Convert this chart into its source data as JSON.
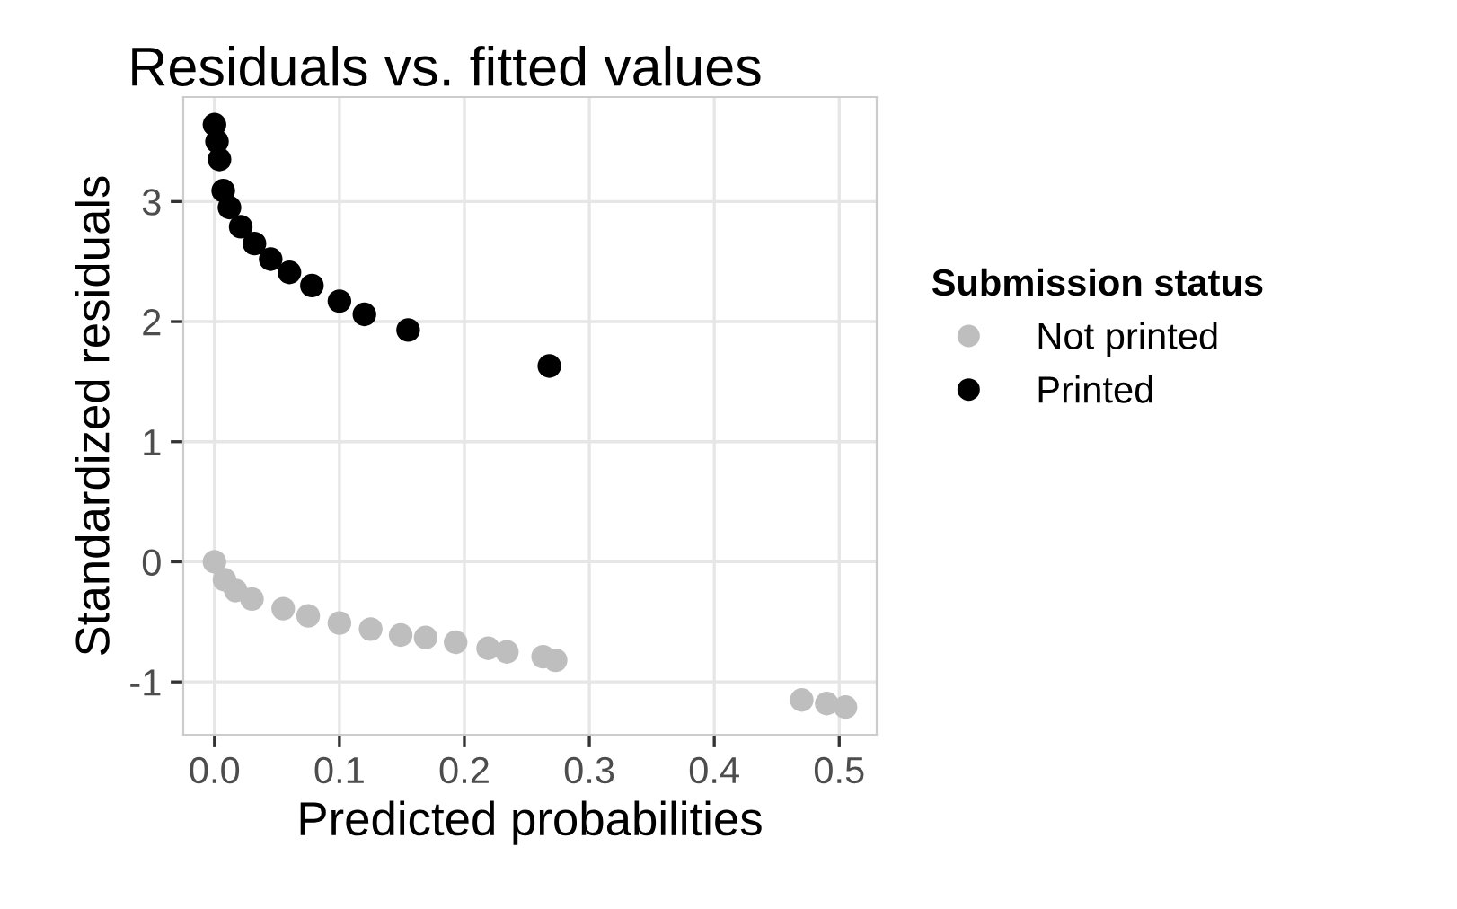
{
  "chart_data": {
    "type": "scatter",
    "title": "Residuals vs. fitted values",
    "xlabel": "Predicted probabilities",
    "ylabel": "Standardized residuals",
    "legend_title": "Submission status",
    "series": [
      {
        "name": "Not printed",
        "color": "#bebebe",
        "x": [
          0.0,
          0.008,
          0.017,
          0.03,
          0.055,
          0.075,
          0.1,
          0.125,
          0.149,
          0.169,
          0.193,
          0.219,
          0.234,
          0.263,
          0.273,
          0.47,
          0.49,
          0.505
        ],
        "values": [
          0.0,
          -0.15,
          -0.24,
          -0.31,
          -0.39,
          -0.45,
          -0.51,
          -0.56,
          -0.61,
          -0.63,
          -0.67,
          -0.72,
          -0.75,
          -0.79,
          -0.82,
          -1.15,
          -1.18,
          -1.21
        ]
      },
      {
        "name": "Printed",
        "color": "#000000",
        "x": [
          0.0,
          0.002,
          0.004,
          0.007,
          0.012,
          0.021,
          0.032,
          0.045,
          0.06,
          0.078,
          0.1,
          0.12,
          0.155,
          0.268
        ],
        "values": [
          3.64,
          3.5,
          3.35,
          3.09,
          2.95,
          2.79,
          2.65,
          2.52,
          2.41,
          2.3,
          2.17,
          2.06,
          1.93,
          1.63
        ]
      }
    ],
    "xlim": [
      -0.025,
      0.53
    ],
    "ylim": [
      -1.44,
      3.87
    ],
    "xticks": [
      {
        "value": 0,
        "label": "0.0"
      },
      0.1,
      0.2,
      0.3,
      0.4,
      0.5
    ],
    "yticks": [
      -1,
      0,
      1,
      2,
      3
    ],
    "grid": true,
    "legend": "right",
    "marker": "circle"
  }
}
